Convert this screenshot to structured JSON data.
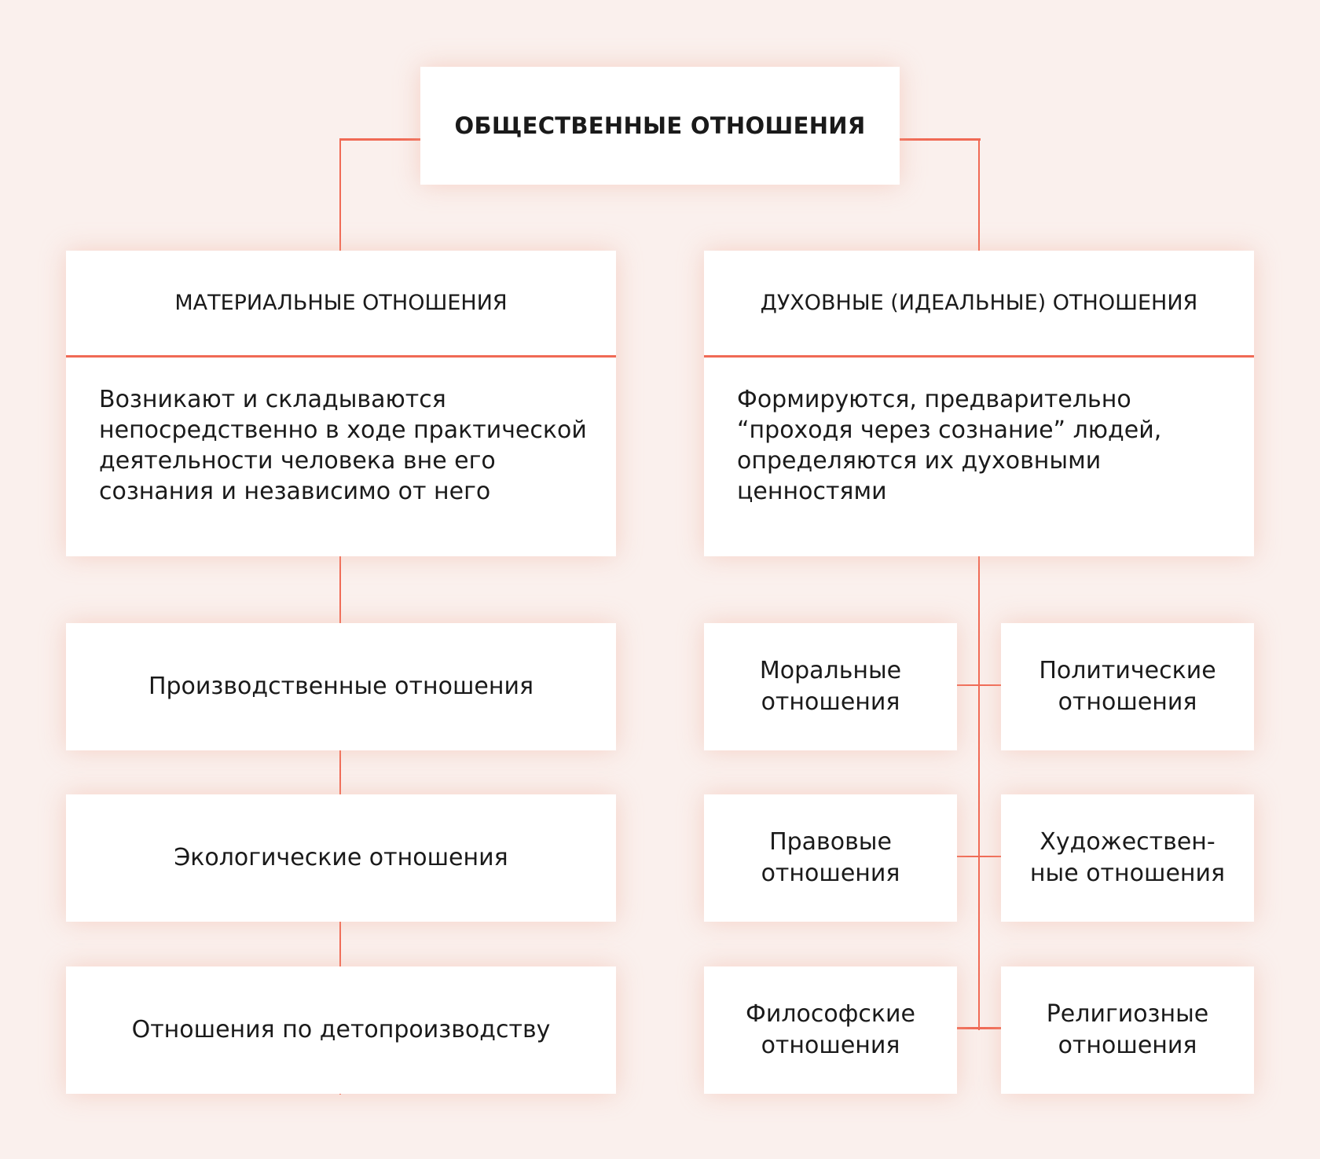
{
  "root": {
    "title": "ОБЩЕСТВЕННЫЕ ОТНОШЕНИЯ"
  },
  "material": {
    "header": "МАТЕРИАЛЬНЫЕ ОТНОШЕНИЯ",
    "description": "Возникают и складываются непосредственно в ходе практической деятельности человека вне его сознания и независимо от него",
    "items": [
      "Производственные отношения",
      "Экологические отношения",
      "Отношения по детопроизводству"
    ]
  },
  "spiritual": {
    "header": "ДУХОВНЫЕ (ИДЕАЛЬНЫЕ) ОТНОШЕНИЯ",
    "description": "Формируются, предварительно “проходя через сознание” людей, определяются их духовными ценностями",
    "items": [
      "Моральные отношения",
      "Политические отношения",
      "Правовые отношения",
      "Художествен-ные отношения",
      "Философские отношения",
      "Религиозные отношения"
    ]
  },
  "colors": {
    "background": "#faf0ed",
    "connector": "#f06a55",
    "box": "#ffffff"
  }
}
